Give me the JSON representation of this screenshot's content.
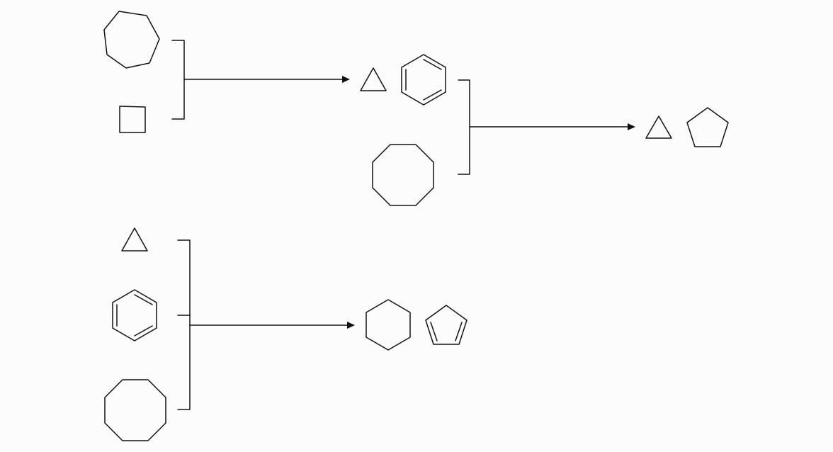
{
  "diagram": {
    "type": "reaction-scheme",
    "colors": {
      "background": "#fcfcfc",
      "stroke": "#111111"
    },
    "reactions": [
      {
        "reactants": [
          "cycloheptane-ring",
          "cyclobutane-ring"
        ],
        "products": [
          "cyclopropane-ring",
          "benzene-ring"
        ]
      },
      {
        "reactants": [
          "cyclopropane-ring",
          "benzene-ring",
          "cyclooctane-ring"
        ],
        "products": [
          "cyclopropane-ring",
          "cyclopentane-ring"
        ]
      },
      {
        "reactants": [
          "cyclopropane-ring",
          "benzene-ring",
          "cyclooctane-ring"
        ],
        "products": [
          "cyclohexane-ring",
          "cyclopentadiene-ring"
        ]
      }
    ]
  }
}
